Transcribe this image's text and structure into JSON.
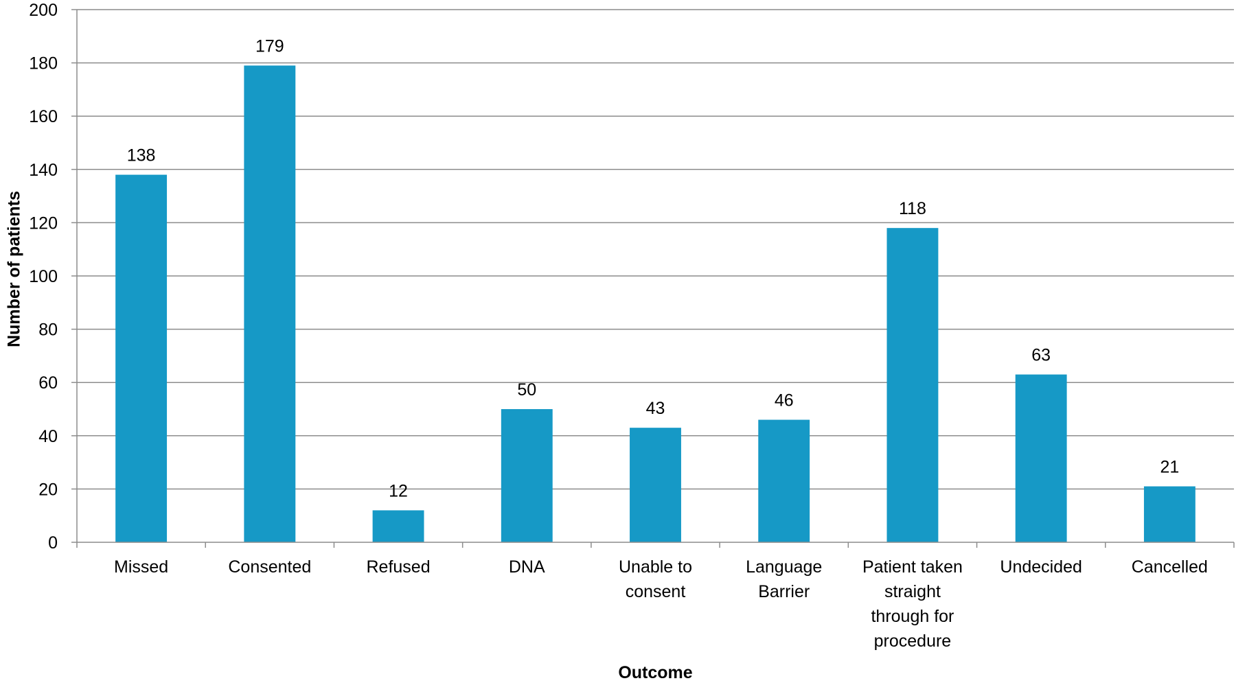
{
  "chart_data": {
    "type": "bar",
    "title": "",
    "xlabel": "Outcome",
    "ylabel": "Number of patients",
    "categories": [
      [
        "Missed"
      ],
      [
        "Consented"
      ],
      [
        "Refused"
      ],
      [
        "DNA"
      ],
      [
        "Unable to",
        "consent"
      ],
      [
        "Language",
        "Barrier"
      ],
      [
        "Patient taken",
        "straight",
        "through for",
        "procedure"
      ],
      [
        "Undecided"
      ],
      [
        "Cancelled"
      ]
    ],
    "values": [
      138,
      179,
      12,
      50,
      43,
      46,
      118,
      63,
      21
    ],
    "ylim": [
      0,
      200
    ],
    "yticks": [
      0,
      20,
      40,
      60,
      80,
      100,
      120,
      140,
      160,
      180,
      200
    ],
    "grid": true,
    "legend": "none",
    "data_labels": true,
    "colors": {
      "bar": "#1699C6",
      "grid": "#8C8C8C",
      "axis": "#8C8C8C",
      "text": "#000000"
    }
  }
}
